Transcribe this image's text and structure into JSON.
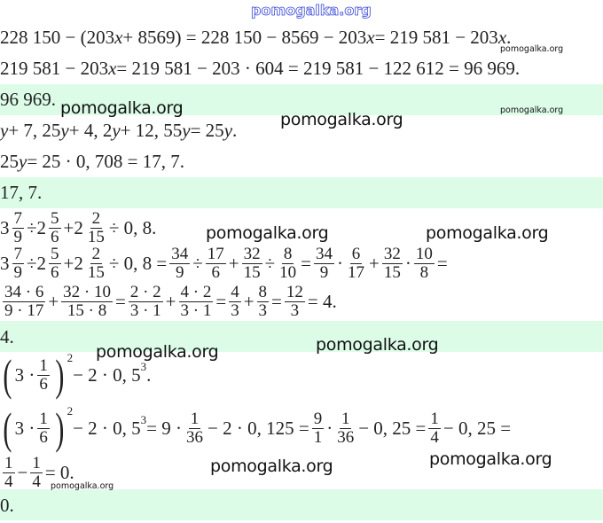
{
  "colors": {
    "answer_band": "#dcfce8",
    "watermark_top": "#3a4ad8"
  },
  "lines": [
    {
      "parts": [
        [
          "t",
          "228 150 − (203"
        ],
        [
          "i",
          "x"
        ],
        [
          "t",
          " + 8569) = 228 150 − 8569 − 203"
        ],
        [
          "i",
          "x"
        ],
        [
          "t",
          " = 219 581 − 203"
        ],
        [
          "i",
          "x"
        ],
        [
          "t",
          "."
        ]
      ]
    },
    {
      "parts": [
        [
          "t",
          "219 581 − 203"
        ],
        [
          "i",
          "x"
        ],
        [
          "t",
          " = 219 581 − 203 · 604 = 219 581 − 122 612 = 96 969."
        ]
      ]
    },
    {
      "answer": true,
      "parts": [
        [
          "t",
          "96 969."
        ]
      ]
    },
    {
      "parts": [
        [
          "i",
          "y"
        ],
        [
          "t",
          " + 7, 25"
        ],
        [
          "i",
          "y"
        ],
        [
          "t",
          " + 4, 2"
        ],
        [
          "i",
          "y"
        ],
        [
          "t",
          " + 12, 55"
        ],
        [
          "i",
          "y"
        ],
        [
          "t",
          " = 25"
        ],
        [
          "i",
          "y"
        ],
        [
          "t",
          "."
        ]
      ]
    },
    {
      "parts": [
        [
          "t",
          "25"
        ],
        [
          "i",
          "y"
        ],
        [
          "t",
          " = 25 · 0, 708 = 17, 7."
        ]
      ]
    },
    {
      "answer": true,
      "parts": [
        [
          "t",
          "17, 7."
        ]
      ]
    },
    {
      "parts": [
        [
          "m",
          "3",
          "7",
          "9"
        ],
        [
          "t",
          " ÷ "
        ],
        [
          "m",
          "2",
          "5",
          "6"
        ],
        [
          "t",
          " + "
        ],
        [
          "m",
          "2",
          "2",
          "15"
        ],
        [
          "t",
          " ÷ 0, 8."
        ]
      ]
    },
    {
      "parts": [
        [
          "m",
          "3",
          "7",
          "9"
        ],
        [
          "t",
          " ÷ "
        ],
        [
          "m",
          "2",
          "5",
          "6"
        ],
        [
          "t",
          " + "
        ],
        [
          "m",
          "2",
          "2",
          "15"
        ],
        [
          "t",
          " ÷ 0, 8 = "
        ],
        [
          "f",
          "34",
          "9"
        ],
        [
          "t",
          " ÷ "
        ],
        [
          "f",
          "17",
          "6"
        ],
        [
          "t",
          " + "
        ],
        [
          "f",
          "32",
          "15"
        ],
        [
          "t",
          " ÷ "
        ],
        [
          "f",
          "8",
          "10"
        ],
        [
          "t",
          " = "
        ],
        [
          "f",
          "34",
          "9"
        ],
        [
          "t",
          " · "
        ],
        [
          "f",
          "6",
          "17"
        ],
        [
          "t",
          " + "
        ],
        [
          "f",
          "32",
          "15"
        ],
        [
          "t",
          " · "
        ],
        [
          "f",
          "10",
          "8"
        ],
        [
          "t",
          " ="
        ]
      ]
    },
    {
      "parts": [
        [
          "f",
          "34 · 6",
          "9 · 17"
        ],
        [
          "t",
          " + "
        ],
        [
          "f",
          "32 · 10",
          "15 · 8"
        ],
        [
          "t",
          " = "
        ],
        [
          "f",
          "2 · 2",
          "3 · 1"
        ],
        [
          "t",
          " + "
        ],
        [
          "f",
          "4 · 2",
          "3 · 1"
        ],
        [
          "t",
          " = "
        ],
        [
          "f",
          "4",
          "3"
        ],
        [
          "t",
          " + "
        ],
        [
          "f",
          "8",
          "3"
        ],
        [
          "t",
          " = "
        ],
        [
          "f",
          "12",
          "3"
        ],
        [
          "t",
          " = 4."
        ]
      ]
    },
    {
      "answer": true,
      "parts": [
        [
          "t",
          "4."
        ]
      ]
    },
    {
      "parts": [
        [
          "p",
          "3 · ",
          "1",
          "6",
          "2"
        ],
        [
          "t",
          " − 2 · 0, 5"
        ],
        [
          "s",
          "3"
        ],
        [
          "t",
          "."
        ]
      ]
    },
    {
      "parts": [
        [
          "p",
          "3 · ",
          "1",
          "6",
          "2"
        ],
        [
          "t",
          " − 2 · 0, 5"
        ],
        [
          "s",
          "3"
        ],
        [
          "t",
          " = 9 · "
        ],
        [
          "f",
          "1",
          "36"
        ],
        [
          "t",
          " − 2 · 0, 125 = "
        ],
        [
          "f",
          "9",
          "1"
        ],
        [
          "t",
          " · "
        ],
        [
          "f",
          "1",
          "36"
        ],
        [
          "t",
          " − 0, 25 = "
        ],
        [
          "f",
          "1",
          "4"
        ],
        [
          "t",
          " − 0, 25 ="
        ]
      ]
    },
    {
      "parts": [
        [
          "f",
          "1",
          "4"
        ],
        [
          "t",
          " − "
        ],
        [
          "f",
          "1",
          "4"
        ],
        [
          "t",
          " = 0."
        ]
      ]
    },
    {
      "answer": true,
      "parts": [
        [
          "t",
          "0."
        ]
      ]
    }
  ],
  "watermarks": [
    "pomogalka.org",
    "pomogalka.org",
    "pomogalka.org",
    "pomogalka.org",
    "pomogalka.org",
    "pomogalka.org",
    "pomogalka.org",
    "pomogalka.org",
    "pomogalka.org",
    "pomogalka.org",
    "pomogalka.org",
    "pomogalka.org"
  ]
}
